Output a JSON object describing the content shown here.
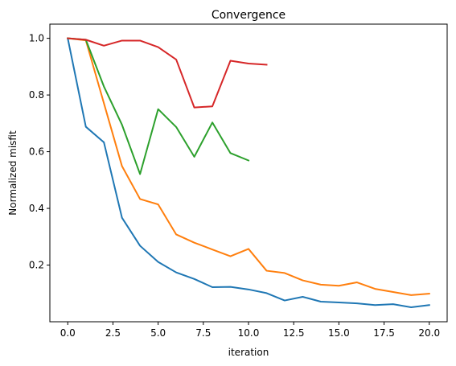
{
  "chart_data": {
    "type": "line",
    "title": "Convergence",
    "xlabel": "iteration",
    "ylabel": "Normalized misfit",
    "xlim": [
      -0.99,
      20.99
    ],
    "ylim": [
      0.0,
      1.05
    ],
    "xticks": [
      0.0,
      2.5,
      5.0,
      7.5,
      10.0,
      12.5,
      15.0,
      17.5,
      20.0
    ],
    "xtick_labels": [
      "0.0",
      "2.5",
      "5.0",
      "7.5",
      "10.0",
      "12.5",
      "15.0",
      "17.5",
      "20.0"
    ],
    "yticks": [
      0.2,
      0.4,
      0.6,
      0.8,
      1.0
    ],
    "ytick_labels": [
      "0.2",
      "0.4",
      "0.6",
      "0.8",
      "1.0"
    ],
    "grid": false,
    "legend": "none",
    "series": [
      {
        "color": "#1f77b4",
        "x": [
          0,
          1,
          2,
          3,
          4,
          5,
          6,
          7,
          8,
          9,
          10,
          11,
          12,
          13,
          14,
          15,
          16,
          17,
          18,
          19,
          20
        ],
        "y": [
          1.0,
          0.688,
          0.633,
          0.367,
          0.268,
          0.211,
          0.174,
          0.151,
          0.122,
          0.123,
          0.114,
          0.101,
          0.075,
          0.088,
          0.071,
          0.068,
          0.065,
          0.059,
          0.062,
          0.051,
          0.059
        ]
      },
      {
        "color": "#ff7f0e",
        "x": [
          0,
          1,
          2,
          3,
          4,
          5,
          6,
          7,
          8,
          9,
          10,
          11,
          12,
          13,
          14,
          15,
          16,
          17,
          18,
          19,
          20
        ],
        "y": [
          1.0,
          0.993,
          0.771,
          0.549,
          0.433,
          0.414,
          0.308,
          0.279,
          0.255,
          0.231,
          0.257,
          0.18,
          0.172,
          0.146,
          0.131,
          0.127,
          0.139,
          0.116,
          0.105,
          0.094,
          0.099
        ]
      },
      {
        "color": "#2ca02c",
        "x": [
          0,
          1,
          2,
          3,
          4,
          5,
          6,
          7,
          8,
          9,
          10
        ],
        "y": [
          1.0,
          0.995,
          0.83,
          0.695,
          0.521,
          0.75,
          0.687,
          0.582,
          0.703,
          0.595,
          0.569
        ]
      },
      {
        "color": "#d62728",
        "x": [
          0,
          1,
          2,
          3,
          4,
          5,
          6,
          7,
          8,
          9,
          10,
          11
        ],
        "y": [
          1.0,
          0.995,
          0.974,
          0.992,
          0.992,
          0.969,
          0.925,
          0.756,
          0.76,
          0.921,
          0.911,
          0.907
        ]
      }
    ]
  }
}
